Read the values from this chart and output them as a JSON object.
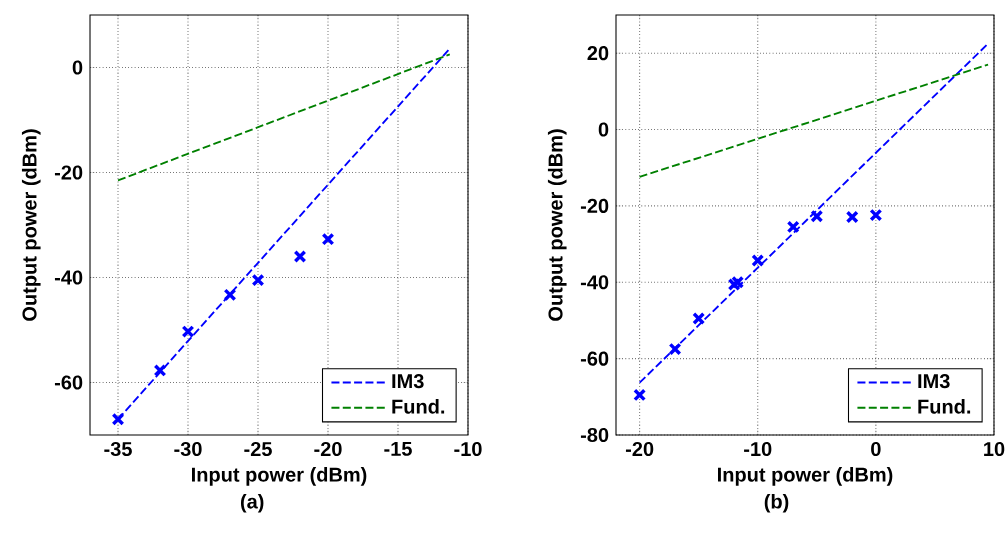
{
  "chart_data": [
    {
      "type": "line",
      "xlabel": "Input power (dBm)",
      "ylabel": "Output power (dBm)",
      "annotations": [
        "(a)"
      ],
      "xlim": [
        -37,
        -10
      ],
      "ylim": [
        -70,
        10
      ],
      "xticks": [
        -35,
        -30,
        -25,
        -20,
        -15,
        -10
      ],
      "yticks": [
        -60,
        -40,
        -20,
        0
      ],
      "grid": true,
      "legend": "bottom right",
      "series": [
        {
          "name": "IM3",
          "color": "#0000ff",
          "line_style": "dashed",
          "marker": "none",
          "x": [
            -35,
            -11.3
          ],
          "values": [
            -67,
            3.6
          ]
        },
        {
          "name": "Fund.",
          "color": "#008000",
          "line_style": "dashed",
          "marker": "none",
          "x": [
            -35,
            -11.3
          ],
          "values": [
            -21.5,
            2.5
          ]
        },
        {
          "type": "scatter",
          "color": "#0000ff",
          "marker": "cross",
          "x": [
            -35,
            -32,
            -30,
            -27,
            -25,
            -22,
            -20
          ],
          "values": [
            -67,
            -57.7,
            -50.3,
            -43.3,
            -40.5,
            -36,
            -32.7
          ]
        }
      ]
    },
    {
      "type": "line",
      "xlabel": "Input power (dBm)",
      "ylabel": "Output power (dBm)",
      "annotations": [
        "(b)"
      ],
      "xlim": [
        -22,
        10
      ],
      "ylim": [
        -80,
        30
      ],
      "xticks": [
        -20,
        -10,
        0,
        10
      ],
      "yticks": [
        -80,
        -60,
        -40,
        -20,
        0,
        20
      ],
      "grid": true,
      "legend": "bottom right",
      "series": [
        {
          "name": "IM3",
          "color": "#0000ff",
          "line_style": "dashed",
          "marker": "none",
          "x": [
            -20,
            9.5
          ],
          "values": [
            -66.3,
            22.5
          ]
        },
        {
          "name": "Fund.",
          "color": "#008000",
          "line_style": "dashed",
          "marker": "none",
          "x": [
            -20,
            9.5
          ],
          "values": [
            -12.4,
            17
          ]
        },
        {
          "type": "scatter",
          "color": "#0000ff",
          "marker": "cross",
          "x": [
            -20,
            -17,
            -15,
            -12,
            -11.7,
            -10,
            -7,
            -5,
            -2,
            0
          ],
          "values": [
            -69.5,
            -57.5,
            -49.5,
            -40.6,
            -40,
            -34.3,
            -25.5,
            -22.7,
            -22.9,
            -22.4
          ]
        }
      ]
    }
  ]
}
